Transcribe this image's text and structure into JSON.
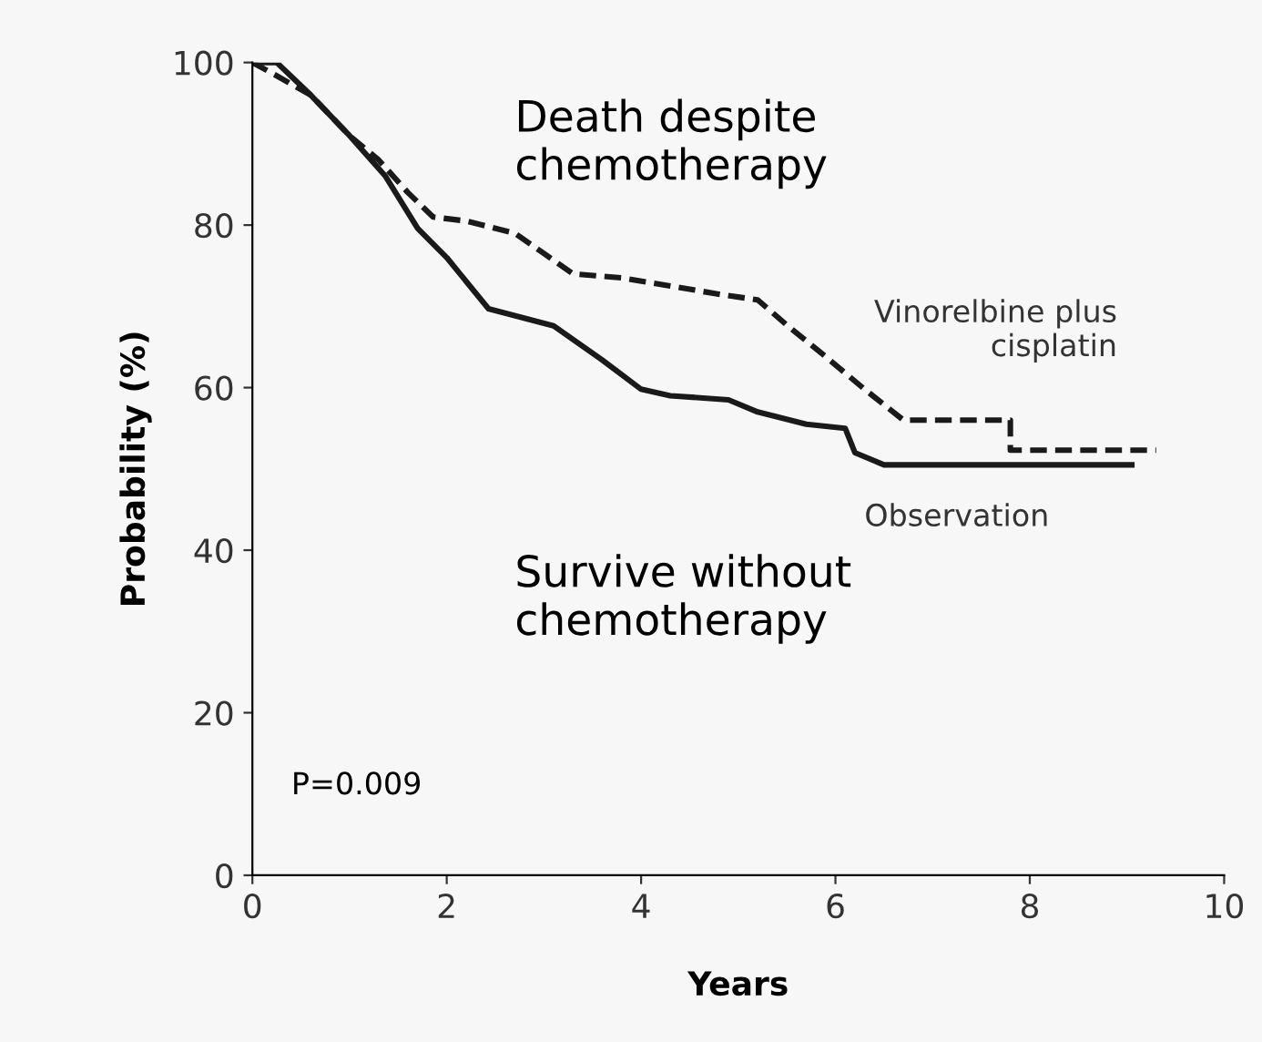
{
  "chart_data": {
    "type": "line",
    "xlabel": "Years",
    "ylabel": "Probability (%)",
    "xlim": [
      0,
      10
    ],
    "ylim": [
      0,
      100
    ],
    "xticks": [
      0,
      2,
      4,
      6,
      8,
      10
    ],
    "yticks": [
      0,
      20,
      40,
      60,
      80,
      100
    ],
    "grid": false,
    "legend": false,
    "marker": "none",
    "annotations": [
      "Death despite\nchemotherapy",
      "Survive without\nchemotherapy",
      "P=0.009"
    ],
    "series": [
      {
        "name": "Vinorelbine plus\ncisplatin",
        "color": "#1a1a1a",
        "line_style": "dashed",
        "x": [
          0,
          0.23,
          0.6,
          1.0,
          1.3,
          1.6,
          1.86,
          2.2,
          2.7,
          3.0,
          3.3,
          3.8,
          4.3,
          4.8,
          5.2,
          5.5,
          5.9,
          6.3,
          6.7,
          7.8,
          7.8,
          9.3
        ],
        "values": [
          100,
          98.5,
          96,
          91,
          88,
          84,
          81,
          80.5,
          79,
          76.5,
          74,
          73.5,
          72.5,
          71.5,
          70.8,
          67.7,
          63.8,
          59.8,
          56,
          56,
          52.3,
          52.3
        ]
      },
      {
        "name": "Observation",
        "color": "#1a1a1a",
        "line_style": "solid",
        "x": [
          0,
          0.25,
          0.6,
          1.0,
          1.37,
          1.7,
          2.0,
          2.43,
          3.1,
          3.6,
          4.0,
          4.3,
          4.9,
          5.2,
          5.7,
          6.1,
          6.2,
          6.5,
          9.05
        ],
        "values": [
          100,
          100,
          96,
          91,
          86,
          79.6,
          76,
          69.7,
          67.6,
          63.4,
          59.8,
          59,
          58.5,
          57,
          55.5,
          55,
          52,
          50.5,
          50.5
        ]
      }
    ]
  }
}
